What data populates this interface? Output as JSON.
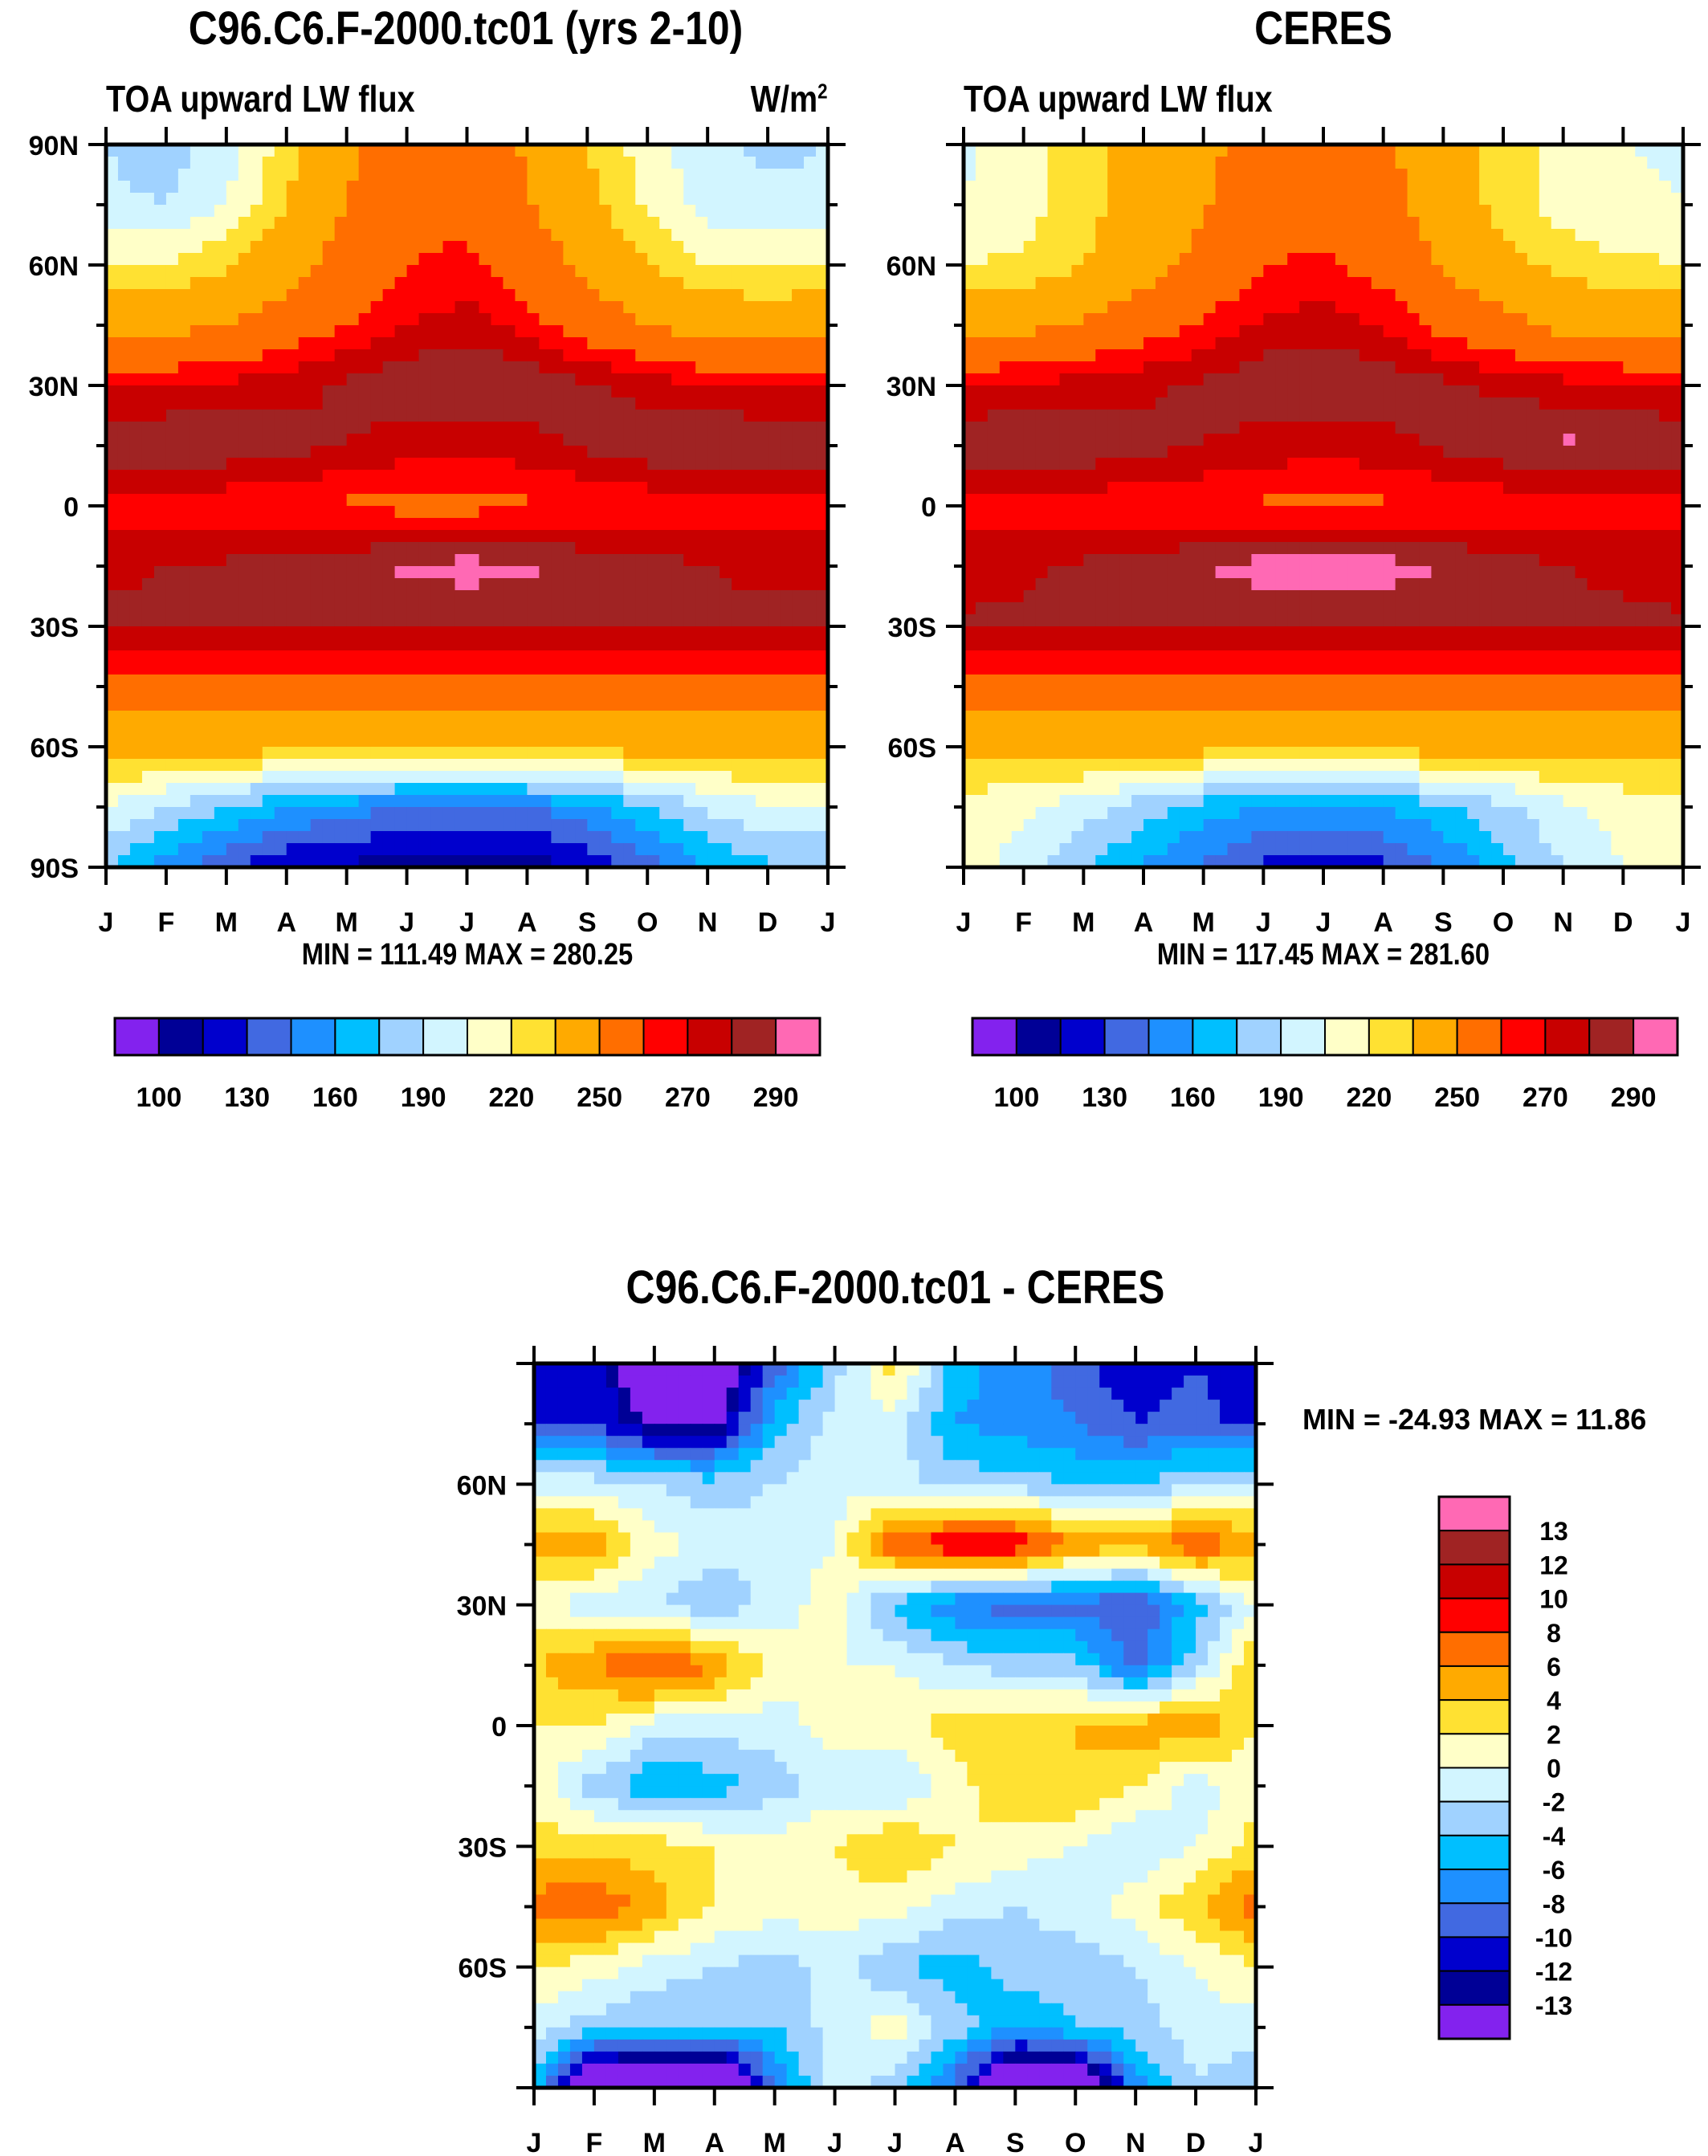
{
  "chart_data": [
    {
      "type": "heatmap",
      "id": "model",
      "title": "C96.C6.F-2000.tc01 (yrs 2-10)",
      "left_subtitle": "TOA upward LW flux",
      "units": "W/m",
      "units_sup": "2",
      "min_max": "MIN = 111.49 MAX = 280.25",
      "x_tick_labels": [
        "J",
        "F",
        "M",
        "A",
        "M",
        "J",
        "J",
        "A",
        "S",
        "O",
        "N",
        "D",
        "J"
      ],
      "y_tick_labels": [
        "90N",
        "60N",
        "30N",
        "0",
        "30S",
        "60S",
        "90S"
      ],
      "ylim": [
        -90,
        90
      ],
      "lat": [
        90,
        75,
        60,
        45,
        30,
        15,
        0,
        -15,
        -30,
        -45,
        -60,
        -75,
        -90
      ],
      "values": [
        [
          170,
          165,
          175,
          195,
          215,
          230,
          232,
          218,
          200,
          185,
          172,
          168,
          170
        ],
        [
          172,
          170,
          180,
          200,
          220,
          235,
          238,
          222,
          205,
          188,
          176,
          172,
          172
        ],
        [
          190,
          190,
          198,
          212,
          228,
          240,
          242,
          232,
          215,
          200,
          190,
          188,
          190
        ],
        [
          212,
          215,
          220,
          230,
          240,
          250,
          255,
          245,
          232,
          220,
          212,
          210,
          212
        ],
        [
          248,
          250,
          252,
          256,
          262,
          268,
          272,
          268,
          262,
          256,
          250,
          248,
          248
        ],
        [
          268,
          270,
          268,
          264,
          260,
          255,
          252,
          256,
          262,
          268,
          272,
          270,
          268
        ],
        [
          245,
          245,
          242,
          240,
          238,
          236,
          236,
          238,
          240,
          242,
          244,
          245,
          245
        ],
        [
          258,
          260,
          262,
          265,
          268,
          272,
          274,
          272,
          268,
          264,
          260,
          258,
          258
        ],
        [
          262,
          262,
          262,
          262,
          262,
          262,
          262,
          262,
          262,
          262,
          262,
          262,
          262
        ],
        [
          232,
          232,
          232,
          232,
          232,
          232,
          232,
          232,
          232,
          232,
          232,
          232,
          232
        ],
        [
          205,
          205,
          205,
          205,
          205,
          205,
          205,
          205,
          205,
          205,
          205,
          205,
          205
        ],
        [
          180,
          170,
          160,
          150,
          145,
          140,
          138,
          140,
          148,
          160,
          172,
          178,
          180
        ],
        [
          160,
          145,
          130,
          122,
          118,
          115,
          112,
          115,
          122,
          135,
          150,
          158,
          160
        ]
      ],
      "colorbar": {
        "orientation": "horizontal",
        "levels": [
          100,
          120,
          130,
          140,
          150,
          160,
          170,
          180,
          190,
          200,
          220,
          240,
          250,
          260,
          270,
          280,
          290
        ],
        "labels": [
          "100",
          "130",
          "160",
          "190",
          "220",
          "250",
          "270",
          "290"
        ]
      }
    },
    {
      "type": "heatmap",
      "id": "obs",
      "title": "CERES",
      "left_subtitle": "TOA upward LW flux",
      "min_max": "MIN = 117.45 MAX = 281.60",
      "x_tick_labels": [
        "J",
        "F",
        "M",
        "A",
        "M",
        "J",
        "J",
        "A",
        "S",
        "O",
        "N",
        "D",
        "J"
      ],
      "y_tick_labels": [
        "60N",
        "30N",
        "0",
        "30S",
        "60S"
      ],
      "ylim": [
        -90,
        90
      ],
      "lat": [
        90,
        75,
        60,
        45,
        30,
        15,
        0,
        -15,
        -30,
        -45,
        -60,
        -75,
        -90
      ],
      "values": [
        [
          178,
          185,
          195,
          205,
          215,
          230,
          235,
          225,
          205,
          195,
          185,
          180,
          178
        ],
        [
          180,
          186,
          196,
          206,
          218,
          232,
          236,
          228,
          208,
          196,
          186,
          182,
          180
        ],
        [
          190,
          192,
          200,
          212,
          225,
          240,
          242,
          235,
          218,
          205,
          195,
          192,
          190
        ],
        [
          212,
          215,
          222,
          232,
          242,
          252,
          255,
          248,
          236,
          225,
          215,
          212,
          212
        ],
        [
          250,
          252,
          254,
          258,
          262,
          268,
          272,
          268,
          262,
          258,
          254,
          252,
          250
        ],
        [
          268,
          270,
          268,
          264,
          260,
          256,
          254,
          256,
          262,
          268,
          272,
          270,
          268
        ],
        [
          245,
          245,
          244,
          242,
          240,
          238,
          236,
          238,
          240,
          242,
          244,
          245,
          245
        ],
        [
          255,
          258,
          262,
          266,
          270,
          274,
          276,
          274,
          270,
          266,
          260,
          258,
          255
        ],
        [
          262,
          262,
          262,
          262,
          262,
          262,
          262,
          262,
          262,
          262,
          262,
          262,
          262
        ],
        [
          232,
          232,
          232,
          232,
          232,
          232,
          232,
          232,
          232,
          232,
          232,
          232,
          232
        ],
        [
          205,
          205,
          205,
          205,
          205,
          205,
          205,
          205,
          205,
          205,
          205,
          205,
          205
        ],
        [
          185,
          182,
          175,
          165,
          155,
          150,
          148,
          150,
          158,
          168,
          178,
          184,
          185
        ],
        [
          185,
          175,
          162,
          148,
          138,
          128,
          125,
          128,
          140,
          155,
          170,
          180,
          185
        ]
      ],
      "colorbar": {
        "orientation": "horizontal",
        "levels": [
          100,
          120,
          130,
          140,
          150,
          160,
          170,
          180,
          190,
          200,
          220,
          240,
          250,
          260,
          270,
          280,
          290
        ],
        "labels": [
          "100",
          "130",
          "160",
          "190",
          "220",
          "250",
          "270",
          "290"
        ]
      }
    },
    {
      "type": "heatmap",
      "id": "diff",
      "title": "C96.C6.F-2000.tc01 - CERES",
      "min_max": "MIN = -24.93 MAX =  11.86",
      "x_tick_labels": [
        "J",
        "F",
        "M",
        "A",
        "M",
        "J",
        "J",
        "A",
        "S",
        "O",
        "N",
        "D",
        "J"
      ],
      "y_tick_labels": [
        "60N",
        "30N",
        "0",
        "30S",
        "60S"
      ],
      "ylim": [
        -90,
        90
      ],
      "lat": [
        90,
        75,
        60,
        45,
        30,
        15,
        0,
        -15,
        -30,
        -45,
        -60,
        -75,
        -90
      ],
      "values": [
        [
          -12,
          -11,
          -16,
          -16,
          -9,
          -3,
          3,
          -5,
          -7,
          -9,
          -12,
          -10,
          -12
        ],
        [
          -11,
          -10,
          -14,
          -14,
          -5,
          -1,
          -1,
          -6,
          -7,
          -8,
          -10,
          -9,
          -11
        ],
        [
          -1,
          -1,
          -2,
          -3,
          -2,
          -1,
          -1,
          -3,
          -3,
          -4,
          -4,
          -2,
          -1
        ],
        [
          5,
          5,
          1,
          -1,
          -1,
          0,
          8,
          10,
          10,
          6,
          5,
          8,
          5
        ],
        [
          0,
          -1,
          -2,
          -4,
          -1,
          1,
          -5,
          -8,
          -9,
          -9,
          -10,
          -5,
          0
        ],
        [
          4,
          6,
          9,
          6,
          1,
          0,
          0,
          -2,
          -3,
          -3,
          -9,
          -3,
          4
        ],
        [
          2,
          2,
          -1,
          -1,
          -1,
          1,
          1,
          3,
          3,
          4,
          5,
          6,
          2
        ],
        [
          1,
          -3,
          -6,
          -5,
          -3,
          -1,
          -2,
          1,
          4,
          4,
          2,
          -1,
          1
        ],
        [
          3,
          3,
          3,
          2,
          1,
          2,
          4,
          2,
          1,
          0,
          -2,
          0,
          3
        ],
        [
          7,
          8,
          5,
          2,
          1,
          1,
          1,
          -1,
          -2,
          -1,
          1,
          4,
          7
        ],
        [
          2,
          1,
          -1,
          -2,
          -3,
          -1,
          -4,
          -5,
          -3,
          -3,
          -2,
          0,
          2
        ],
        [
          -1,
          -3,
          -4,
          -4,
          -4,
          -1,
          1,
          -3,
          -6,
          -4,
          -3,
          -1,
          -1
        ],
        [
          -4,
          -20,
          -22,
          -22,
          -8,
          -1,
          -3,
          -9,
          -20,
          -20,
          -7,
          -2,
          -4
        ]
      ],
      "colorbar": {
        "orientation": "vertical",
        "levels": [
          -13,
          -12,
          -10,
          -8,
          -6,
          -4,
          -2,
          0,
          2,
          4,
          6,
          8,
          10,
          12,
          13
        ],
        "labels": [
          "13",
          "12",
          "10",
          "8",
          "6",
          "4",
          "2",
          "0",
          "-2",
          "-4",
          "-6",
          "-8",
          "-10",
          "-12",
          "-13"
        ]
      }
    }
  ],
  "palette": [
    "#8322ee",
    "#000096",
    "#0000cd",
    "#4169e1",
    "#1e90ff",
    "#00bfff",
    "#a0d2ff",
    "#d2f5ff",
    "#ffffc8",
    "#ffe132",
    "#ffaa00",
    "#ff6e00",
    "#ff0000",
    "#c80000",
    "#a02323",
    "#ff69b4"
  ]
}
